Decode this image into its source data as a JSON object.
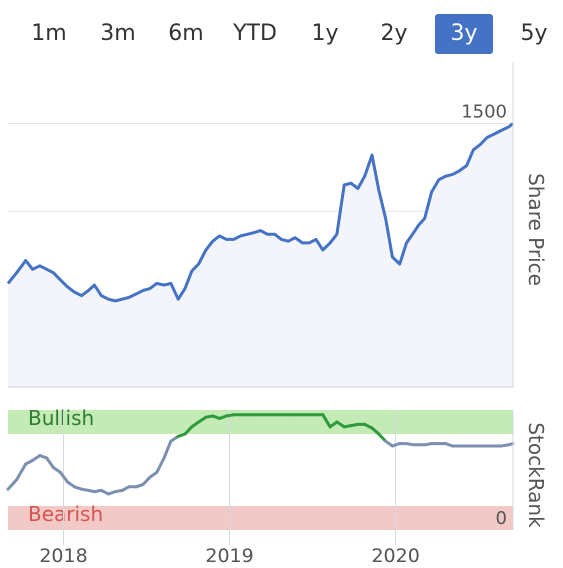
{
  "range_selector": {
    "options": [
      "1m",
      "3m",
      "6m",
      "YTD",
      "1y",
      "2y",
      "3y",
      "5y"
    ],
    "selected": "3y",
    "active_color": "#4472c4"
  },
  "chart_data": [
    {
      "type": "area",
      "name": "share-price-chart",
      "ylabel": "Share Price",
      "ylim": [
        0,
        1850
      ],
      "yticks": [
        0,
        500,
        1000,
        1500
      ],
      "xlim": [
        "2017-09-01",
        "2020-09-15"
      ],
      "line_color": "#4472c4",
      "fill_color": "#f3f5fa",
      "series": [
        {
          "x": [
            "2017-09-01",
            "2017-09-20",
            "2017-10-10",
            "2017-10-25",
            "2017-11-10",
            "2017-11-25",
            "2017-12-10",
            "2017-12-25",
            "2018-01-10",
            "2018-01-25",
            "2018-02-10",
            "2018-02-25",
            "2018-03-10",
            "2018-03-25",
            "2018-04-10",
            "2018-04-25",
            "2018-05-10",
            "2018-05-25",
            "2018-06-10",
            "2018-06-25",
            "2018-07-10",
            "2018-07-25",
            "2018-08-10",
            "2018-08-25",
            "2018-09-10",
            "2018-09-25",
            "2018-10-10",
            "2018-10-25",
            "2018-11-10",
            "2018-11-25",
            "2018-12-10",
            "2018-12-25",
            "2019-01-10",
            "2019-01-25",
            "2019-02-10",
            "2019-02-25",
            "2019-03-10",
            "2019-03-25",
            "2019-04-10",
            "2019-04-25",
            "2019-05-10",
            "2019-05-25",
            "2019-06-10",
            "2019-06-25",
            "2019-07-10",
            "2019-07-25",
            "2019-08-10",
            "2019-08-25",
            "2019-09-10",
            "2019-09-25",
            "2019-10-10",
            "2019-10-25",
            "2019-11-10",
            "2019-11-25",
            "2019-12-10",
            "2019-12-25",
            "2020-01-10",
            "2020-01-25",
            "2020-02-10",
            "2020-02-20",
            "2020-03-05",
            "2020-03-20",
            "2020-04-05",
            "2020-04-20",
            "2020-05-05",
            "2020-05-20",
            "2020-06-05",
            "2020-06-20",
            "2020-07-05",
            "2020-07-20",
            "2020-08-05",
            "2020-08-20",
            "2020-09-05",
            "2020-09-15"
          ],
          "values": [
            590,
            650,
            720,
            670,
            690,
            670,
            650,
            610,
            570,
            540,
            520,
            550,
            580,
            520,
            500,
            490,
            500,
            510,
            530,
            550,
            560,
            590,
            580,
            590,
            500,
            560,
            660,
            700,
            780,
            830,
            860,
            840,
            840,
            860,
            870,
            880,
            890,
            870,
            870,
            840,
            830,
            850,
            820,
            820,
            840,
            780,
            820,
            870,
            1150,
            1160,
            1130,
            1200,
            1320,
            1120,
            960,
            740,
            700,
            820,
            880,
            920,
            960,
            1110,
            1180,
            1200,
            1210,
            1230,
            1260,
            1350,
            1380,
            1420,
            1440,
            1460,
            1480,
            1500
          ]
        }
      ]
    },
    {
      "type": "line",
      "name": "stockrank-chart",
      "ylabel": "StockRank",
      "ylim": [
        0,
        100
      ],
      "yticks": [
        0
      ],
      "bands": [
        {
          "label": "Bullish",
          "from": 80,
          "to": 100,
          "color": "#c4eab5",
          "text_color": "#2e7d32"
        },
        {
          "label": "Bearish",
          "from": 0,
          "to": 20,
          "color": "#f1c9c7",
          "text_color": "#d9534f"
        }
      ],
      "line_color_low": "#7b8faf",
      "line_color_high": "#2e9a3c",
      "high_threshold": 80,
      "xlim": [
        "2017-09-01",
        "2020-09-15"
      ],
      "xticks": [
        "2018",
        "2019",
        "2020"
      ],
      "xtick_dates": [
        "2018-01-01",
        "2019-01-01",
        "2020-01-01"
      ],
      "series": [
        {
          "x": [
            "2017-09-01",
            "2017-09-20",
            "2017-10-10",
            "2017-10-25",
            "2017-11-10",
            "2017-11-25",
            "2017-12-10",
            "2017-12-25",
            "2018-01-10",
            "2018-01-25",
            "2018-02-10",
            "2018-02-25",
            "2018-03-10",
            "2018-03-25",
            "2018-04-10",
            "2018-04-25",
            "2018-05-10",
            "2018-05-25",
            "2018-06-10",
            "2018-06-25",
            "2018-07-10",
            "2018-07-25",
            "2018-08-10",
            "2018-08-25",
            "2018-09-10",
            "2018-09-25",
            "2018-10-10",
            "2018-10-25",
            "2018-11-10",
            "2018-11-25",
            "2018-12-10",
            "2018-12-25",
            "2019-01-10",
            "2019-01-25",
            "2019-02-10",
            "2019-02-25",
            "2019-03-10",
            "2019-03-25",
            "2019-04-10",
            "2019-04-25",
            "2019-05-10",
            "2019-05-25",
            "2019-06-10",
            "2019-06-25",
            "2019-07-10",
            "2019-07-25",
            "2019-08-10",
            "2019-08-25",
            "2019-09-10",
            "2019-09-25",
            "2019-10-10",
            "2019-10-25",
            "2019-11-10",
            "2019-11-25",
            "2019-12-10",
            "2019-12-25",
            "2020-01-10",
            "2020-01-25",
            "2020-02-10",
            "2020-02-20",
            "2020-03-05",
            "2020-03-20",
            "2020-04-05",
            "2020-04-20",
            "2020-05-05",
            "2020-05-20",
            "2020-06-05",
            "2020-06-20",
            "2020-07-05",
            "2020-07-20",
            "2020-08-05",
            "2020-08-20",
            "2020-09-05",
            "2020-09-15"
          ],
          "values": [
            34,
            42,
            55,
            58,
            62,
            60,
            52,
            48,
            40,
            36,
            34,
            33,
            32,
            33,
            30,
            32,
            33,
            36,
            36,
            38,
            44,
            48,
            60,
            74,
            78,
            80,
            86,
            90,
            94,
            95,
            93,
            95,
            96,
            96,
            96,
            96,
            96,
            96,
            96,
            96,
            96,
            96,
            96,
            96,
            96,
            96,
            86,
            90,
            86,
            87,
            88,
            88,
            85,
            80,
            74,
            70,
            72,
            72,
            71,
            71,
            71,
            72,
            72,
            72,
            70,
            70,
            70,
            70,
            70,
            70,
            70,
            70,
            71,
            72
          ]
        }
      ]
    }
  ]
}
